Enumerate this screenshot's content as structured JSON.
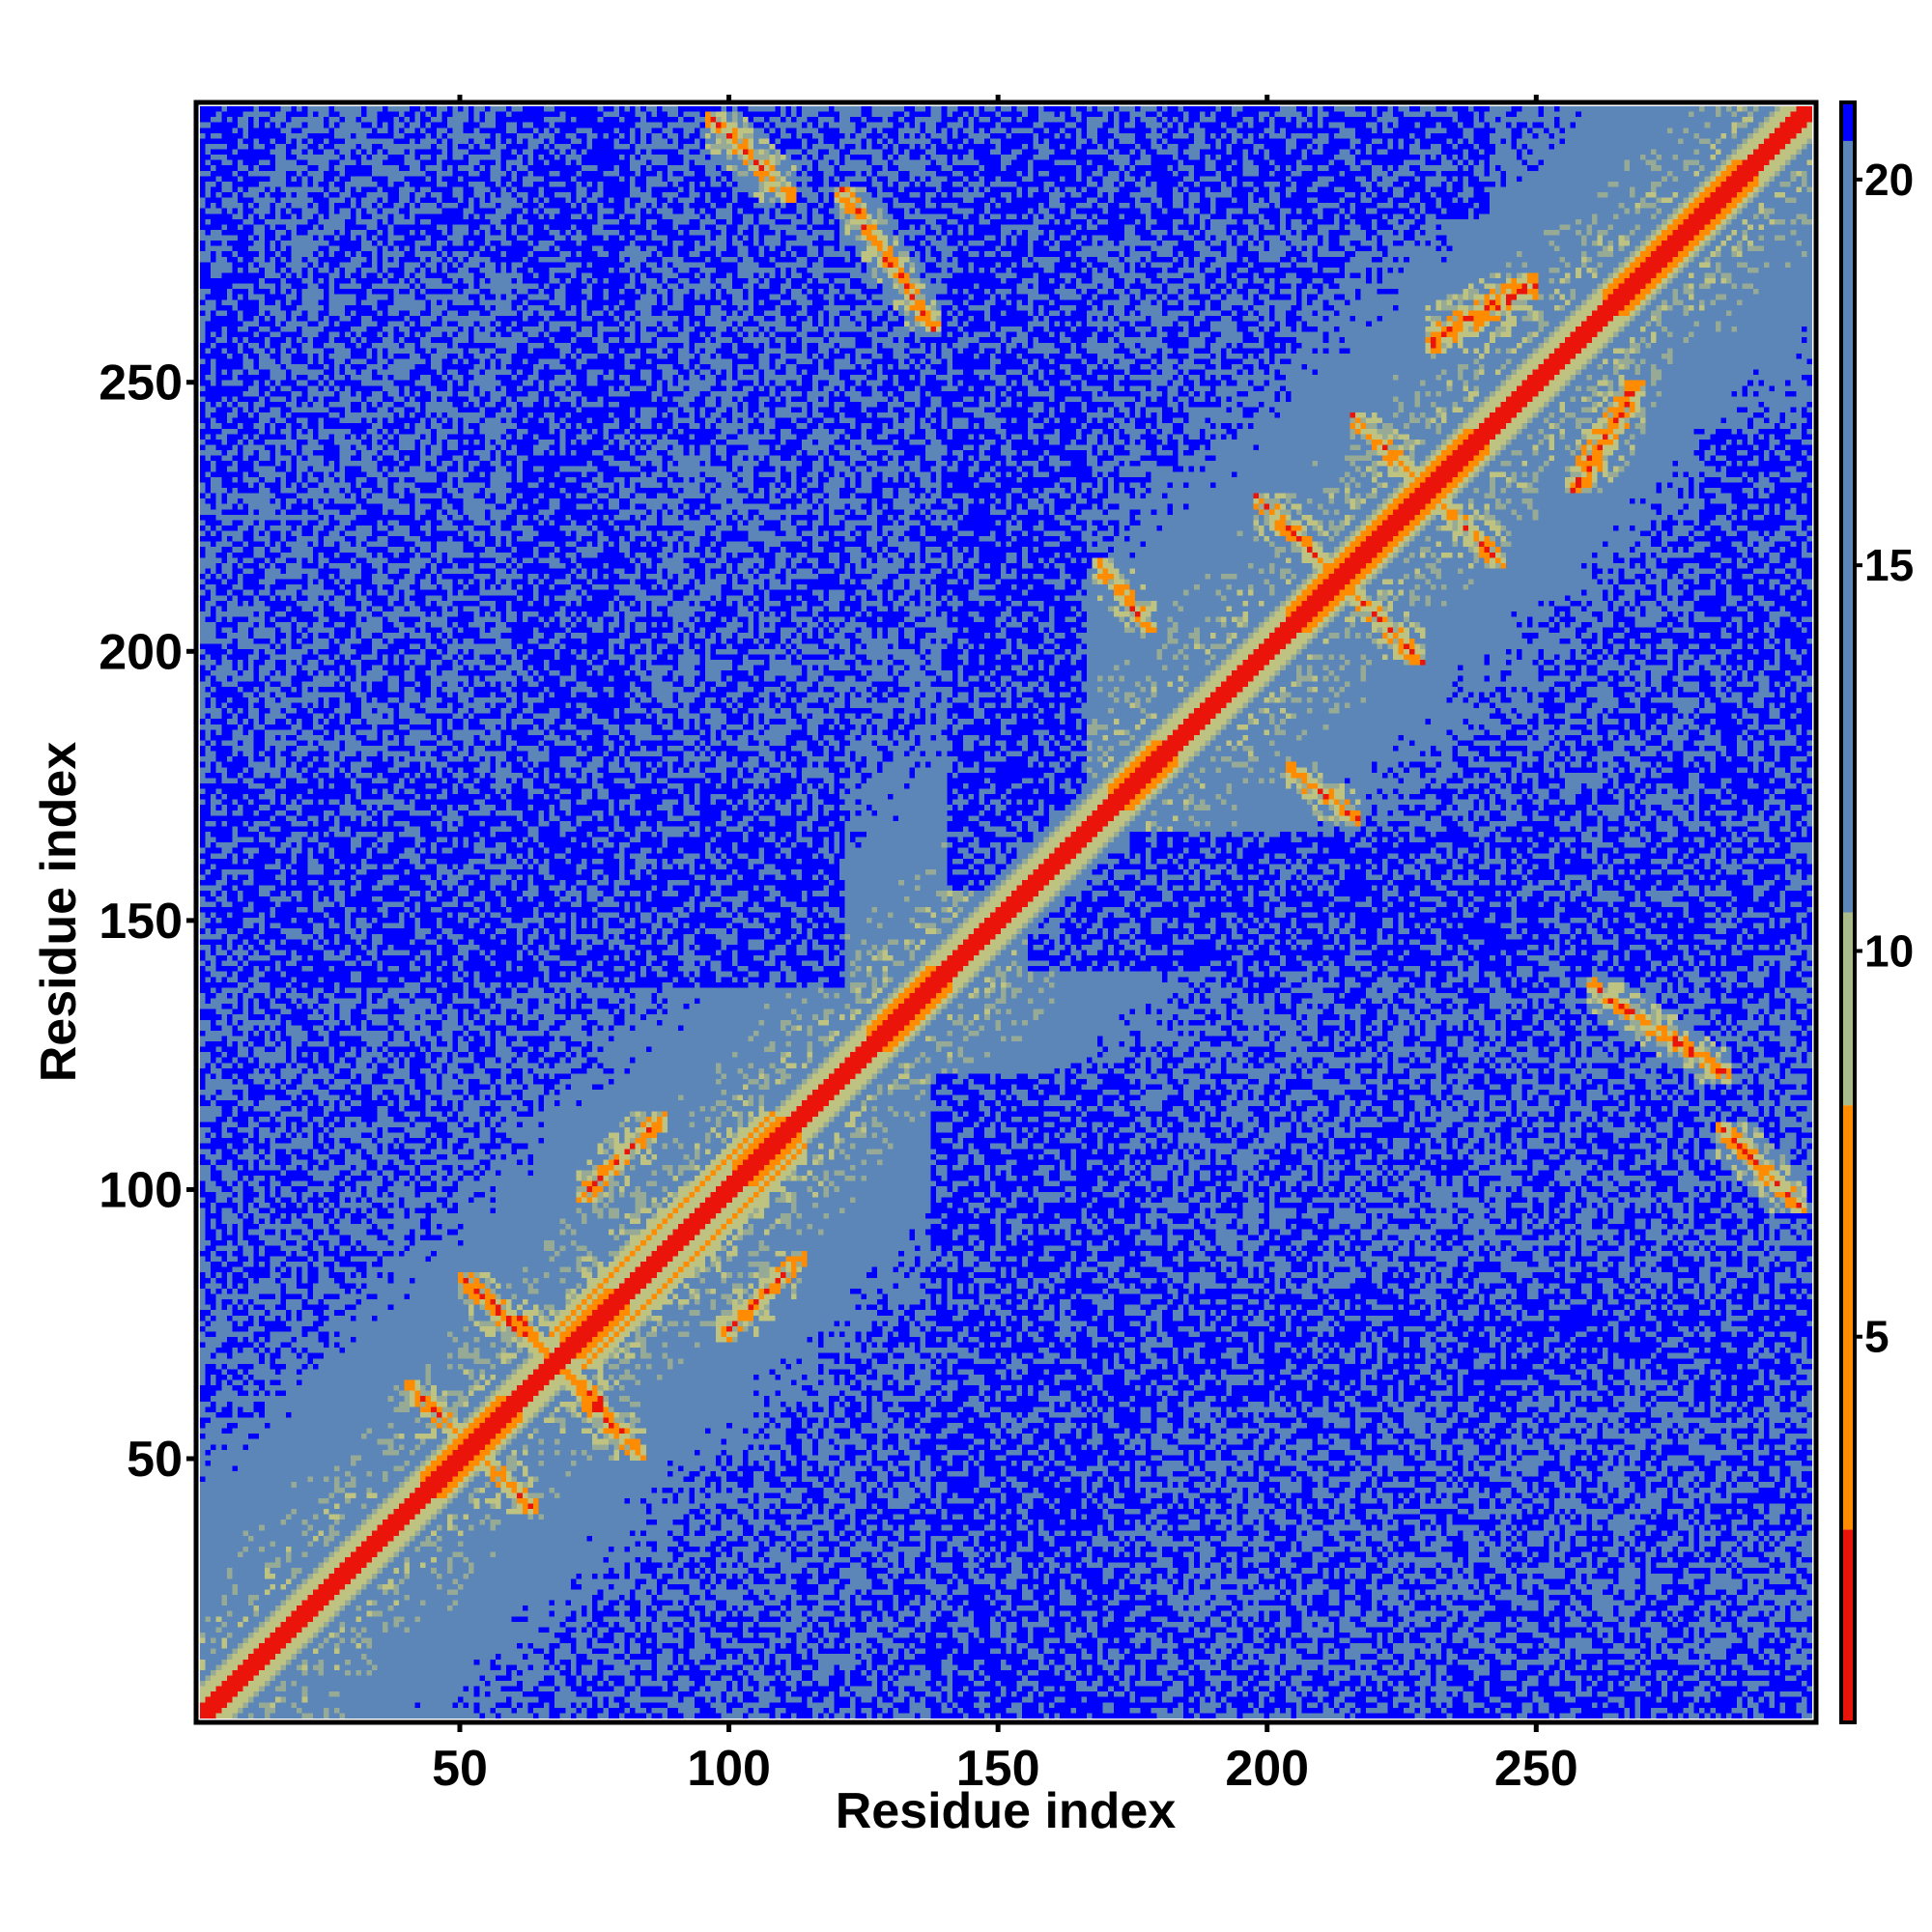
{
  "chart_data": {
    "type": "heatmap",
    "title": "",
    "xlabel": "Residue index",
    "ylabel": "Residue index",
    "n_residues": 300,
    "xlim": [
      1,
      302
    ],
    "ylim": [
      1,
      302
    ],
    "x_ticks": [
      50,
      100,
      150,
      200,
      250
    ],
    "y_ticks": [
      50,
      100,
      150,
      200,
      250
    ],
    "colorbar": {
      "range": [
        0,
        21
      ],
      "ticks": [
        5,
        10,
        15,
        20
      ],
      "colors": {
        "low": "#ff0000",
        "mid_low": "#ff8c00",
        "mid": "#a9bb8a",
        "high": "#5b86b7",
        "max": "#0000ff"
      }
    },
    "structure": {
      "diagonal_contact_distance": 2,
      "helices": [
        [
          42,
          60
        ],
        [
          68,
          80
        ],
        [
          100,
          112
        ],
        [
          125,
          140
        ],
        [
          170,
          182
        ],
        [
          203,
          225
        ],
        [
          225,
          240
        ],
        [
          262,
          290
        ]
      ],
      "beta_contacts": [
        {
          "from": [
            42,
            60
          ],
          "to": [
            42,
            60
          ],
          "orientation": "anti"
        },
        {
          "from": [
            62,
            80
          ],
          "to": [
            52,
            72
          ],
          "orientation": "anti"
        },
        {
          "from": [
            74,
            84
          ],
          "to": [
            100,
            110
          ],
          "orientation": "parallel"
        },
        {
          "from": [
            75,
            110
          ],
          "to": [
            69,
            104
          ],
          "orientation": "parallel"
        },
        {
          "from": [
            98,
            108
          ],
          "to": [
            286,
            296
          ],
          "orientation": "anti"
        },
        {
          "from": [
            122,
            135
          ],
          "to": [
            262,
            282
          ],
          "orientation": "anti"
        },
        {
          "from": [
            170,
            175
          ],
          "to": [
            206,
            213
          ],
          "orientation": "anti"
        },
        {
          "from": [
            200,
            225
          ],
          "to": [
            200,
            225
          ],
          "orientation": "anti"
        },
        {
          "from": [
            218,
            240
          ],
          "to": [
            218,
            240
          ],
          "orientation": "anti"
        },
        {
          "from": [
            232,
            246
          ],
          "to": [
            258,
            266
          ],
          "orientation": "parallel"
        }
      ],
      "far_regions": [
        {
          "x": [
            137,
            175
          ],
          "y": [
            1,
            120
          ]
        },
        {
          "x": [
            155,
            302
          ],
          "y": [
            140,
            165
          ]
        },
        {
          "x": [
            1,
            22
          ],
          "y": [
            140,
            170
          ]
        },
        {
          "x": [
            180,
            302
          ],
          "y": [
            60,
            80
          ]
        },
        {
          "x": [
            280,
            302
          ],
          "y": [
            170,
            240
          ]
        },
        {
          "x": [
            1,
            10
          ],
          "y": [
            230,
            300
          ]
        },
        {
          "x": [
            140,
            160
          ],
          "y": [
            260,
            300
          ]
        }
      ]
    }
  }
}
